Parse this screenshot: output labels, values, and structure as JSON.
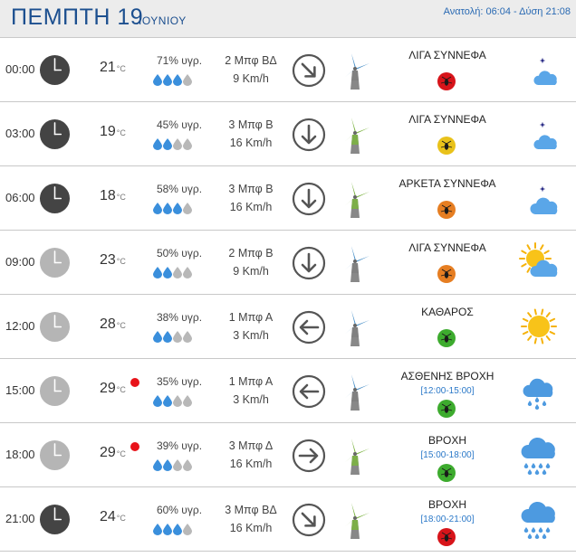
{
  "header": {
    "day": "ΠΕΜΠΤΗ 19",
    "month": "ΙΟΥΝΙΟΥ",
    "sun": "Ανατολή: 06:04 - Δύση 21:08"
  },
  "colors": {
    "title": "#1c4f8f",
    "row_border": "#c8c8c8",
    "night_clock": "#444444",
    "day_clock": "#b5b5b5",
    "insect_red": "#d7141a",
    "insect_orange": "#e67e22",
    "insect_yellow": "#e9c21a",
    "insect_green": "#3dab2e",
    "range_blue": "#2a78c8",
    "drop_blue": "#3a8fdc",
    "drop_grey": "#b8b8b8"
  },
  "rows": [
    {
      "time": "00:00",
      "clock": "night",
      "temp": "21",
      "unit": "°C",
      "rain": false,
      "humidity": "71% υγρ.",
      "drops": 3,
      "wind_b": "2 Μπφ ΒΔ",
      "wind_s": "9 Km/h",
      "arrow": "down-right",
      "mill": "blue",
      "condition": "ΛΙΓΑ ΣΥΝΝΕΦΑ",
      "range": "",
      "insect": "red",
      "weather": "moon-cloud"
    },
    {
      "time": "03:00",
      "clock": "night",
      "temp": "19",
      "unit": "°C",
      "rain": false,
      "humidity": "45% υγρ.",
      "drops": 2,
      "wind_b": "3 Μπφ Β",
      "wind_s": "16 Km/h",
      "arrow": "down",
      "mill": "green",
      "condition": "ΛΙΓΑ ΣΥΝΝΕΦΑ",
      "range": "",
      "insect": "yellow",
      "weather": "moon-cloud"
    },
    {
      "time": "06:00",
      "clock": "night",
      "temp": "18",
      "unit": "°C",
      "rain": false,
      "humidity": "58% υγρ.",
      "drops": 3,
      "wind_b": "3 Μπφ Β",
      "wind_s": "16 Km/h",
      "arrow": "down",
      "mill": "green",
      "condition": "ΑΡΚΕΤΑ ΣΥΝΝΕΦΑ",
      "range": "",
      "insect": "orange",
      "weather": "moon-clouds"
    },
    {
      "time": "09:00",
      "clock": "day",
      "temp": "23",
      "unit": "°C",
      "rain": false,
      "humidity": "50% υγρ.",
      "drops": 2,
      "wind_b": "2 Μπφ Β",
      "wind_s": "9 Km/h",
      "arrow": "down",
      "mill": "blue",
      "condition": "ΛΙΓΑ ΣΥΝΝΕΦΑ",
      "range": "",
      "insect": "orange",
      "weather": "sun-cloud"
    },
    {
      "time": "12:00",
      "clock": "day",
      "temp": "28",
      "unit": "°C",
      "rain": false,
      "humidity": "38% υγρ.",
      "drops": 2,
      "wind_b": "1 Μπφ Α",
      "wind_s": "3 Km/h",
      "arrow": "left",
      "mill": "blue",
      "condition": "ΚΑΘΑΡΟΣ",
      "range": "",
      "insect": "green",
      "weather": "sun"
    },
    {
      "time": "15:00",
      "clock": "day",
      "temp": "29",
      "unit": "°C",
      "rain": true,
      "humidity": "35% υγρ.",
      "drops": 2,
      "wind_b": "1 Μπφ Α",
      "wind_s": "3 Km/h",
      "arrow": "left",
      "mill": "blue",
      "condition": "ΑΣΘΕΝΗΣ ΒΡΟΧΗ",
      "range": "[12:00-15:00]",
      "insect": "green",
      "weather": "light-rain"
    },
    {
      "time": "18:00",
      "clock": "day",
      "temp": "29",
      "unit": "°C",
      "rain": true,
      "humidity": "39% υγρ.",
      "drops": 2,
      "wind_b": "3 Μπφ Δ",
      "wind_s": "16 Km/h",
      "arrow": "right",
      "mill": "green",
      "condition": "ΒΡΟΧΗ",
      "range": "[15:00-18:00]",
      "insect": "green",
      "weather": "rain"
    },
    {
      "time": "21:00",
      "clock": "night",
      "temp": "24",
      "unit": "°C",
      "rain": false,
      "humidity": "60% υγρ.",
      "drops": 3,
      "wind_b": "3 Μπφ ΒΔ",
      "wind_s": "16 Km/h",
      "arrow": "down-right",
      "mill": "green",
      "condition": "ΒΡΟΧΗ",
      "range": "[18:00-21:00]",
      "insect": "red",
      "weather": "rain"
    }
  ]
}
